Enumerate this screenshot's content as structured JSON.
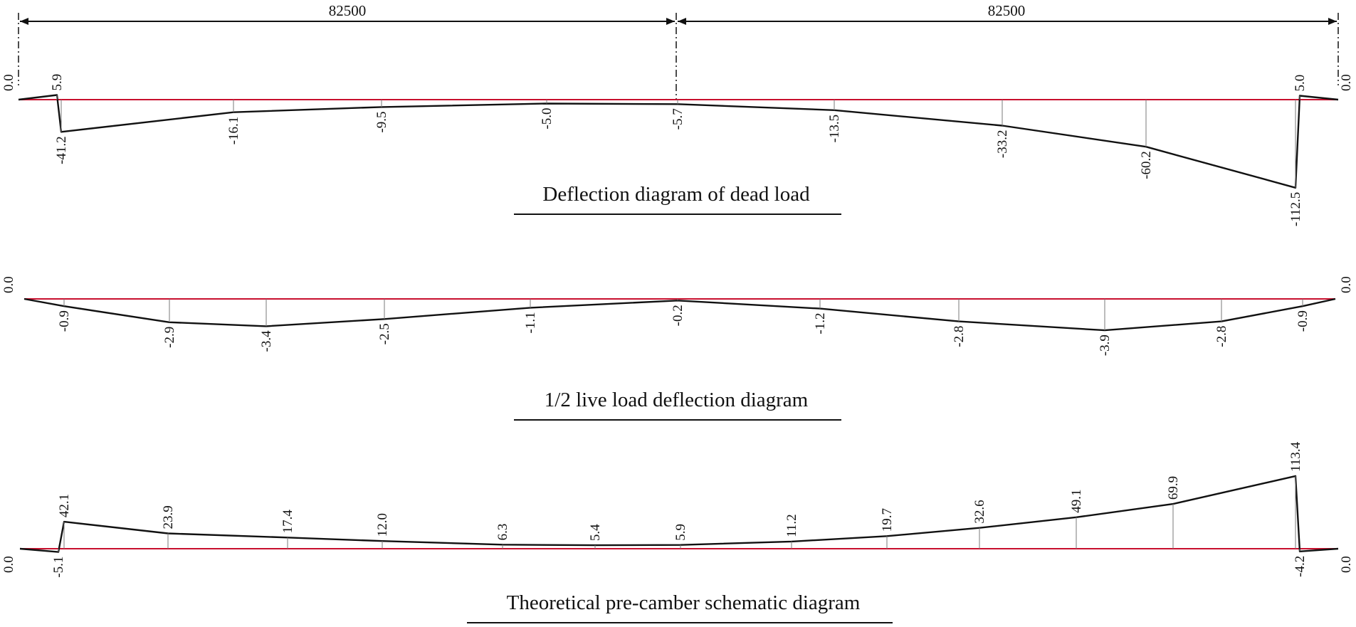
{
  "dimensions": {
    "left_span": "82500",
    "right_span": "82500"
  },
  "colors": {
    "baseline": "#c8102e",
    "curve": "#111111",
    "tick": "#7a7a7a"
  },
  "diagrams": [
    {
      "id": "dead-load",
      "title": "Deflection diagram of dead load",
      "end_labels": [
        "0.0",
        "0.0"
      ],
      "points": [
        {
          "label": "5.9",
          "value": 5.9
        },
        {
          "label": "-41.2",
          "value": -41.2
        },
        {
          "label": "-16.1",
          "value": -16.1
        },
        {
          "label": "-9.5",
          "value": -9.5
        },
        {
          "label": "-5.0",
          "value": -5.0
        },
        {
          "label": "-5.7",
          "value": -5.7
        },
        {
          "label": "-13.5",
          "value": -13.5
        },
        {
          "label": "-33.2",
          "value": -33.2
        },
        {
          "label": "-60.2",
          "value": -60.2
        },
        {
          "label": "-112.5",
          "value": -112.5
        },
        {
          "label": "5.0",
          "value": 5.0
        }
      ]
    },
    {
      "id": "live-load",
      "title": "1/2 live load deflection diagram",
      "end_labels": [
        "0.0",
        "0.0"
      ],
      "points": [
        {
          "label": "-0.9",
          "value": -0.9
        },
        {
          "label": "-2.9",
          "value": -2.9
        },
        {
          "label": "-3.4",
          "value": -3.4
        },
        {
          "label": "-2.5",
          "value": -2.5
        },
        {
          "label": "-1.1",
          "value": -1.1
        },
        {
          "label": "-0.2",
          "value": -0.2
        },
        {
          "label": "-1.2",
          "value": -1.2
        },
        {
          "label": "-2.8",
          "value": -2.8
        },
        {
          "label": "-3.9",
          "value": -3.9
        },
        {
          "label": "-2.8",
          "value": -2.8
        },
        {
          "label": "-0.9",
          "value": -0.9
        }
      ]
    },
    {
      "id": "pre-camber",
      "title": "Theoretical pre-camber schematic diagram",
      "end_labels": [
        "0.0",
        "0.0"
      ],
      "points": [
        {
          "label": "-5.1",
          "value": -5.1
        },
        {
          "label": "42.1",
          "value": 42.1
        },
        {
          "label": "23.9",
          "value": 23.9
        },
        {
          "label": "17.4",
          "value": 17.4
        },
        {
          "label": "12.0",
          "value": 12.0
        },
        {
          "label": "6.3",
          "value": 6.3
        },
        {
          "label": "5.4",
          "value": 5.4
        },
        {
          "label": "5.9",
          "value": 5.9
        },
        {
          "label": "11.2",
          "value": 11.2
        },
        {
          "label": "19.7",
          "value": 19.7
        },
        {
          "label": "32.6",
          "value": 32.6
        },
        {
          "label": "49.1",
          "value": 49.1
        },
        {
          "label": "69.9",
          "value": 69.9
        },
        {
          "label": "113.4",
          "value": 113.4
        },
        {
          "label": "-4.2",
          "value": -4.2
        }
      ]
    }
  ]
}
